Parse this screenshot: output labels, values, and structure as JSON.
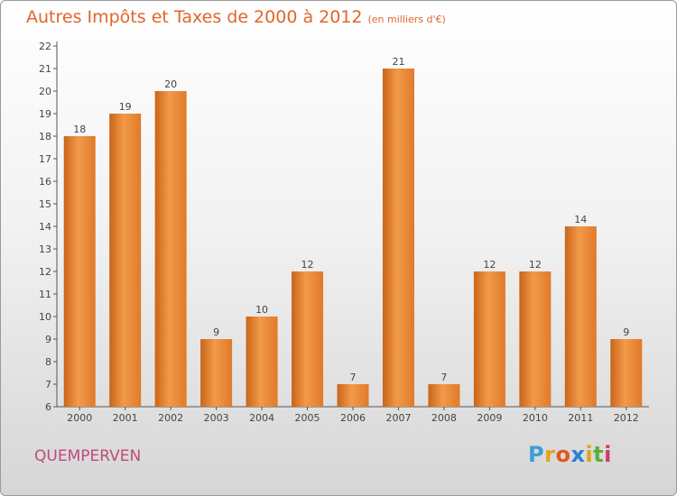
{
  "title": "Autres Impôts et Taxes de 2000 à 2012",
  "subtitle": "(en milliers d'€)",
  "commune": "QUEMPERVEN",
  "logo": {
    "letters": [
      "P",
      "r",
      "o",
      "x",
      "i",
      "t",
      "i"
    ],
    "colors": [
      "#3aa0d8",
      "#e8a020",
      "#e05a20",
      "#2b7fd0",
      "#e0a020",
      "#5cb030",
      "#d03a6a"
    ]
  },
  "chart_data": {
    "type": "bar",
    "categories": [
      "2000",
      "2001",
      "2002",
      "2003",
      "2004",
      "2005",
      "2006",
      "2007",
      "2008",
      "2009",
      "2010",
      "2011",
      "2012"
    ],
    "values": [
      18,
      19,
      20,
      9,
      10,
      12,
      7,
      21,
      7,
      12,
      12,
      14,
      9
    ],
    "ylim": [
      6,
      22
    ],
    "yticks": [
      6,
      7,
      8,
      9,
      10,
      11,
      12,
      13,
      14,
      15,
      16,
      17,
      18,
      19,
      20,
      21,
      22
    ],
    "grid": false,
    "bar_color": "#e8853a"
  }
}
